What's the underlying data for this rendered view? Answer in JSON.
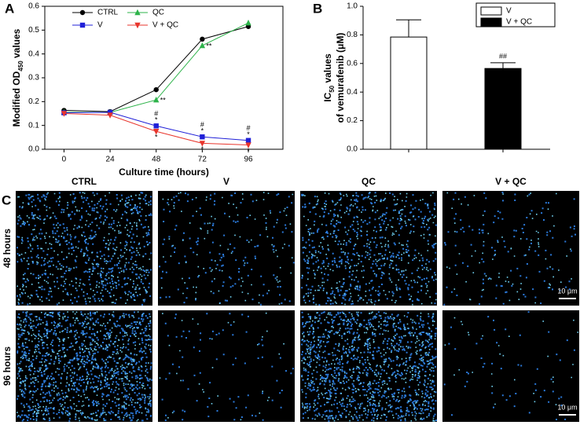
{
  "chart_data": [
    {
      "type": "line",
      "ylabel": [
        "Modified OD",
        "450",
        " values"
      ],
      "xlabel": "Culture time (hours)",
      "x": [
        0,
        24,
        48,
        72,
        96
      ],
      "xlim": [
        -10,
        114
      ],
      "xticks": [
        0,
        24,
        48,
        72,
        96
      ],
      "ylim": [
        0,
        0.6
      ],
      "yticks": [
        {
          "value": 0,
          "label": "0.0"
        },
        0.1,
        0.2,
        0.3,
        0.4,
        0.5,
        0.6
      ],
      "legend": "upper left",
      "legend_columns": 2,
      "series": [
        {
          "name": "CTRL",
          "color": "#000000",
          "marker": "circle",
          "values": [
            0.163,
            0.158,
            0.25,
            0.462,
            0.515
          ]
        },
        {
          "name": "QC",
          "color": "#2db34a",
          "marker": "triangle-up",
          "values": [
            0.155,
            0.155,
            0.207,
            0.435,
            0.53
          ],
          "annotations": [
            null,
            null,
            [
              "**"
            ],
            [
              "**"
            ],
            null
          ],
          "annotation_side": "right"
        },
        {
          "name": "V",
          "color": "#2020d8",
          "marker": "square",
          "values": [
            0.153,
            0.155,
            0.098,
            0.052,
            0.037
          ],
          "annotations": [
            null,
            null,
            [
              "#",
              "*"
            ],
            [
              "#",
              "*"
            ],
            [
              "#",
              "*"
            ]
          ],
          "annotation_side": "above"
        },
        {
          "name": "V + QC",
          "color": "#e8352c",
          "marker": "triangle-down",
          "values": [
            0.15,
            0.143,
            0.075,
            0.025,
            0.018
          ],
          "annotations": [
            null,
            null,
            [
              "*"
            ],
            [
              "*"
            ],
            [
              "*"
            ]
          ],
          "annotation_side": "below"
        }
      ]
    },
    {
      "type": "bar",
      "ylabel": [
        [
          "IC",
          "50",
          " values"
        ],
        [
          "of vemurafenib (μM)"
        ]
      ],
      "ylim": [
        0,
        1
      ],
      "yticks": [
        {
          "value": 0,
          "label": "0.0"
        },
        0.2,
        0.4,
        0.6,
        0.8,
        {
          "value": 1,
          "label": "1.0"
        }
      ],
      "legend": "upper right",
      "series": [
        {
          "name": "V",
          "color": "#ffffff",
          "values": [
            0.785
          ],
          "errors": [
            0.12
          ]
        },
        {
          "name": "V + QC",
          "color": "#000000",
          "values": [
            0.565
          ],
          "errors": [
            0.04
          ],
          "annotations": [
            "##"
          ]
        }
      ]
    }
  ],
  "panels": {
    "a": "A",
    "b": "B",
    "c": "C"
  },
  "images": {
    "columns": [
      "CTRL",
      "V",
      "QC",
      "V + QC"
    ],
    "rows": [
      "48 hours",
      "96 hours"
    ],
    "scale_bar": "10 μm"
  }
}
